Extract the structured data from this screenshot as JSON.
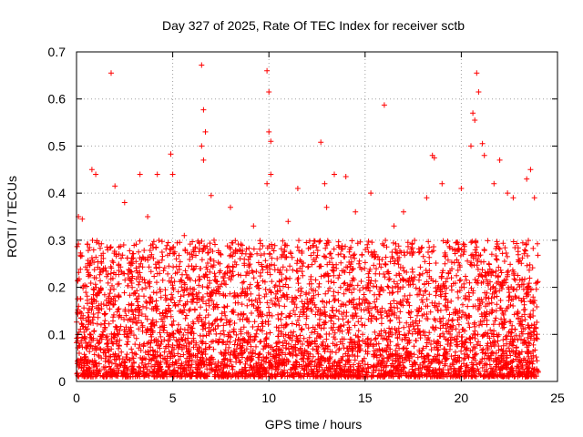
{
  "chart_data": {
    "type": "scatter",
    "title": "Day 327 of 2025, Rate Of TEC Index for receiver sctb",
    "xlabel": "GPS time / hours",
    "ylabel": "ROTI / TECUs",
    "xlim": [
      0,
      25
    ],
    "ylim": [
      0,
      0.7
    ],
    "x_ticks": [
      "0",
      "5",
      "10",
      "15",
      "20",
      "25"
    ],
    "y_ticks": [
      "0",
      "0.1",
      "0.2",
      "0.3",
      "0.4",
      "0.5",
      "0.6",
      "0.7"
    ],
    "grid": true,
    "marker": "+",
    "color": "#ff0000",
    "series": [
      {
        "x": [
          1.8,
          6.5,
          9.9,
          10.0,
          20.8,
          20.9,
          6.6,
          6.7,
          20.6,
          20.7,
          16.0,
          10.0,
          10.1,
          12.7,
          6.5,
          6.6,
          21.1,
          21.2,
          20.5,
          9.9,
          0.8,
          1.0,
          4.9,
          10.1,
          13.4,
          18.5,
          18.6,
          22.0,
          23.6,
          3.3,
          4.2,
          14.0,
          0.1,
          0.3,
          5.0,
          2.0,
          7.0,
          8.0,
          11.5,
          12.9,
          15.3,
          17.0,
          19.0,
          22.7,
          23.4,
          23.8,
          2.5,
          3.7,
          5.6,
          9.2,
          11.0,
          13.0,
          14.5,
          16.5,
          18.2,
          20.0,
          21.7,
          22.4
        ],
        "y": [
          0.655,
          0.672,
          0.66,
          0.615,
          0.655,
          0.615,
          0.577,
          0.53,
          0.57,
          0.555,
          0.587,
          0.53,
          0.51,
          0.508,
          0.5,
          0.47,
          0.505,
          0.48,
          0.5,
          0.42,
          0.45,
          0.44,
          0.483,
          0.44,
          0.44,
          0.48,
          0.475,
          0.47,
          0.45,
          0.44,
          0.44,
          0.435,
          0.35,
          0.345,
          0.44,
          0.415,
          0.395,
          0.37,
          0.41,
          0.42,
          0.4,
          0.36,
          0.42,
          0.39,
          0.43,
          0.39,
          0.38,
          0.35,
          0.31,
          0.33,
          0.34,
          0.37,
          0.36,
          0.33,
          0.39,
          0.41,
          0.42,
          0.4
        ]
      }
    ],
    "dense_band": {
      "x_range": [
        0,
        24
      ],
      "y_low": 0.01,
      "y_high": 0.3,
      "points": 4500
    }
  }
}
